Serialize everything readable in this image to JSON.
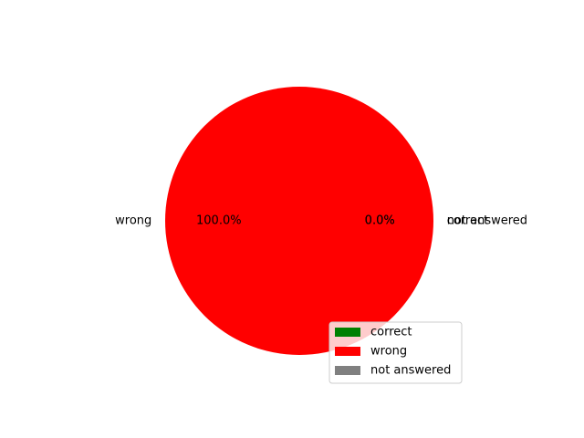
{
  "chart_data": {
    "type": "pie",
    "categories": [
      "correct",
      "wrong",
      "not answered"
    ],
    "values": [
      0,
      100,
      0
    ],
    "percent_labels": [
      "0.0%",
      "100.0%",
      "0.0%"
    ],
    "colors": [
      "#008000",
      "#ff0000",
      "#808080"
    ],
    "start_angle_deg": 0,
    "direction": "counterclockwise",
    "legend": {
      "entries": [
        "correct",
        "wrong",
        "not answered"
      ],
      "placement": "lower-right"
    },
    "title": "",
    "xlabel": "",
    "ylabel": ""
  }
}
